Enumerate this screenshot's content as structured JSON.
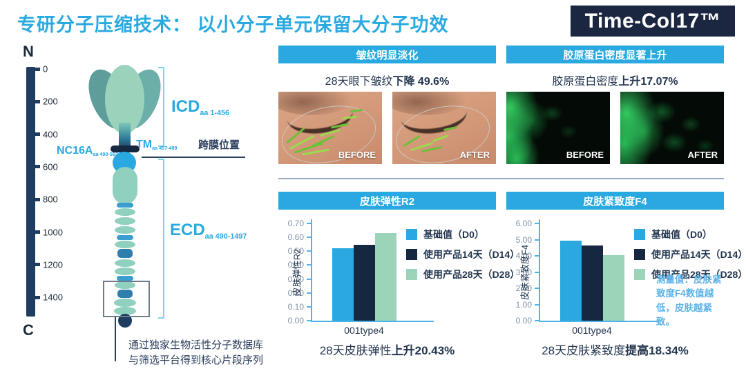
{
  "header": {
    "title": "专研分子压缩技术： 以小分子单元保留大分子功效",
    "badge": "Time-Col17™"
  },
  "diagram": {
    "n_label": "N",
    "c_label": "C",
    "scale_ticks": [
      "0",
      "200",
      "400",
      "600",
      "800",
      "1000",
      "1200",
      "1400"
    ],
    "regions": {
      "icd": {
        "name": "ICD",
        "range": "aa 1-456"
      },
      "tm": {
        "name": "TM",
        "range": "aa 457-489"
      },
      "nc16a": {
        "name": "NC16A",
        "range": "aa 490-562"
      },
      "ecd": {
        "name": "ECD",
        "range": "aa 490-1497"
      }
    },
    "membrane_label": "跨膜位置",
    "caption_line1": "通过独家生物活性分子数据库",
    "caption_line2": "与筛选平台得到核心片段序列"
  },
  "panels": {
    "wrinkle": {
      "header": "皱纹明显淡化",
      "stat_prefix": "28天眼下皱纹",
      "stat_bold": "下降 49.6%",
      "before_label": "BEFORE",
      "after_label": "AFTER"
    },
    "collagen": {
      "header": "胶原蛋白密度显著上升",
      "stat_prefix": "胶原蛋白密度",
      "stat_bold": "上升17.07%",
      "before_label": "BEFORE",
      "after_label": "AFTER"
    },
    "elasticity": {
      "header": "皮肤弹性R2",
      "result_prefix": "28天皮肤弹性",
      "result_bold": "上升20.43%"
    },
    "firmness": {
      "header": "皮肤紧致度F4",
      "result_prefix": "28天皮肤紧致度",
      "result_bold": "提高18.34%",
      "note": "测量值：皮肤紧致度F4数值越低，皮肤越紧致。"
    }
  },
  "chart_data": [
    {
      "type": "bar",
      "title": "皮肤弹性R2",
      "categories": [
        "001type4"
      ],
      "series": [
        {
          "name": "基础值（D0）",
          "values": [
            0.52
          ],
          "color": "#29A9E0"
        },
        {
          "name": "使用产品14天（D14）",
          "values": [
            0.545
          ],
          "color": "#16283F"
        },
        {
          "name": "使用产品28天（D28）",
          "values": [
            0.63
          ],
          "color": "#9BD4B8"
        }
      ],
      "ylabel": "皮肤弹性R2",
      "xlabel": "",
      "ylim": [
        0,
        0.7
      ],
      "yticks": [
        "0.70",
        "0.60",
        "0.50",
        "0.40",
        "0.30",
        "0.20",
        "0.10",
        "0.00"
      ],
      "grid": false,
      "legend_position": "right"
    },
    {
      "type": "bar",
      "title": "皮肤紧致度F4",
      "categories": [
        "001type4"
      ],
      "series": [
        {
          "name": "基础值（D0）",
          "values": [
            4.95
          ],
          "color": "#29A9E0"
        },
        {
          "name": "使用产品14天（D14）",
          "values": [
            4.65
          ],
          "color": "#16283F"
        },
        {
          "name": "使用产品28天（D28）",
          "values": [
            4.05
          ],
          "color": "#9BD4B8"
        }
      ],
      "ylabel": "皮肤紧致度F4",
      "xlabel": "",
      "ylim": [
        0,
        6
      ],
      "yticks": [
        "6.00",
        "5.00",
        "4.00",
        "3.00",
        "2.00",
        "1.00",
        "0.00"
      ],
      "grid": false,
      "legend_position": "right"
    }
  ],
  "colors": {
    "accent_blue": "#29A9E0",
    "navy": "#16283F",
    "light_green": "#9BD4B8",
    "scale_navy": "#1E3D60",
    "bracket_blue": "#7ED3EB",
    "note_blue": "#5CB3E8"
  }
}
